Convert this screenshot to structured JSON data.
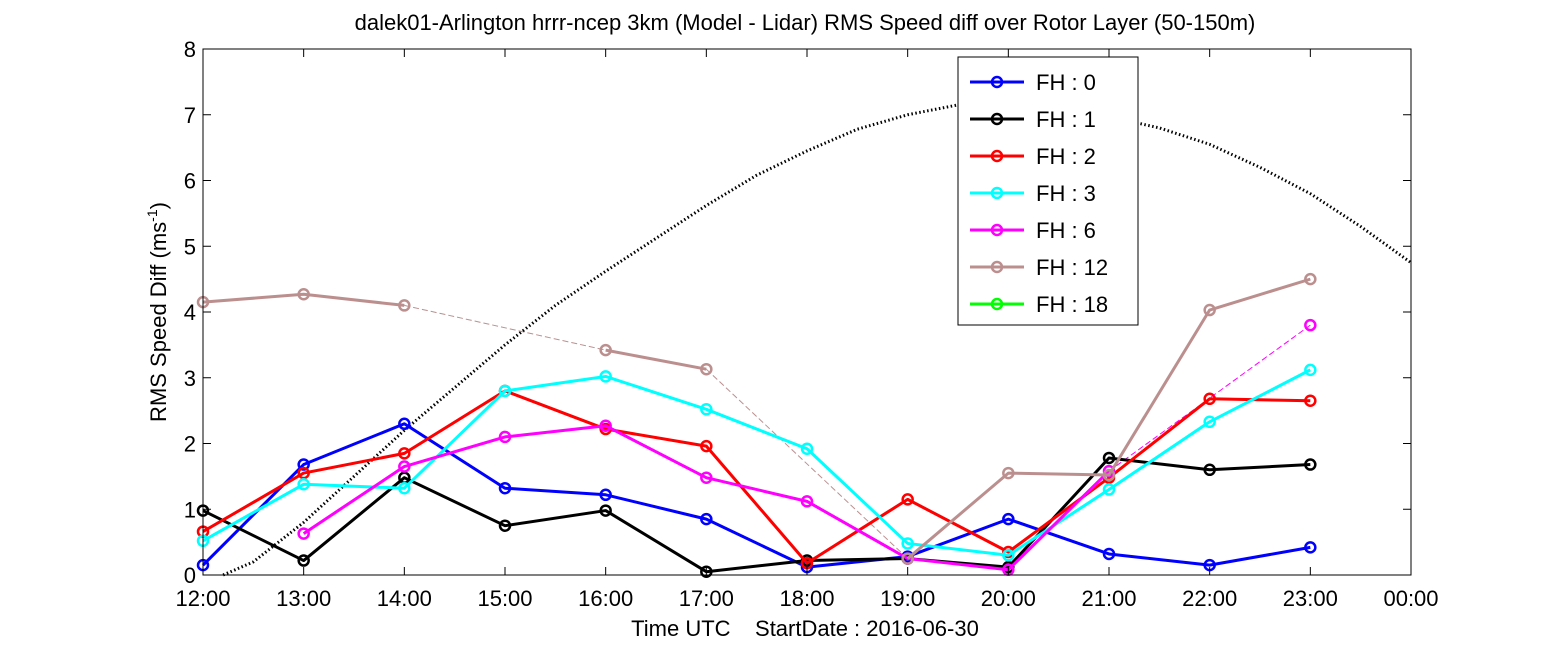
{
  "chart_data": {
    "type": "line",
    "title": "dalek01-Arlington hrrr-ncep 3km (Model - Lidar) RMS Speed diff over Rotor Layer (50-150m)",
    "xlabel": "Time UTC    StartDate : 2016-06-30",
    "ylabel_main": "RMS Speed Diff (ms",
    "ylabel_sup": "-1",
    "ylabel_close": ")",
    "x_tick_labels": [
      "12:00",
      "13:00",
      "14:00",
      "15:00",
      "16:00",
      "17:00",
      "18:00",
      "19:00",
      "20:00",
      "21:00",
      "22:00",
      "23:00",
      "00:00"
    ],
    "y_ticks": [
      0,
      1,
      2,
      3,
      4,
      5,
      6,
      7,
      8
    ],
    "xlim": [
      0,
      12
    ],
    "ylim": [
      0,
      8
    ],
    "grid": false,
    "legend_position": "top-right",
    "series": [
      {
        "name": "FH : 0",
        "color": "#0000ff",
        "x": [
          0,
          1,
          2,
          3,
          4,
          5,
          6,
          7,
          8,
          9,
          10,
          11
        ],
        "values": [
          0.15,
          1.68,
          2.3,
          1.32,
          1.22,
          0.85,
          0.12,
          0.28,
          0.85,
          0.32,
          0.15,
          0.42
        ]
      },
      {
        "name": "FH : 1",
        "color": "#000000",
        "x": [
          0,
          1,
          2,
          3,
          4,
          5,
          6,
          7,
          8,
          9,
          10,
          11
        ],
        "values": [
          0.98,
          0.22,
          1.48,
          0.75,
          0.98,
          0.05,
          0.22,
          0.25,
          0.12,
          1.78,
          1.6,
          1.68
        ]
      },
      {
        "name": "FH : 2",
        "color": "#ff0000",
        "x": [
          0,
          1,
          2,
          3,
          4,
          5,
          6,
          7,
          8,
          9,
          10,
          11
        ],
        "values": [
          0.66,
          1.55,
          1.85,
          2.8,
          2.22,
          1.96,
          0.18,
          1.15,
          0.35,
          1.48,
          2.68,
          2.65
        ]
      },
      {
        "name": "FH : 3",
        "color": "#00ffff",
        "x": [
          0,
          1,
          2,
          3,
          4,
          5,
          6,
          7,
          8,
          9,
          10,
          11
        ],
        "values": [
          0.52,
          1.38,
          1.32,
          2.8,
          3.02,
          2.52,
          1.92,
          0.48,
          0.3,
          1.3,
          2.33,
          3.12
        ]
      },
      {
        "name": "FH : 6",
        "color": "#ff00ff",
        "x": [
          1,
          2,
          3,
          4,
          5,
          6,
          7,
          8,
          9,
          11
        ],
        "values": [
          0.63,
          1.65,
          2.1,
          2.27,
          1.48,
          1.12,
          0.25,
          0.08,
          1.58,
          3.8
        ]
      },
      {
        "name": "FH : 12",
        "color": "#bc8f8f",
        "x": [
          0,
          1,
          2,
          4,
          5,
          7,
          8,
          9,
          10,
          11
        ],
        "values": [
          4.15,
          4.27,
          4.1,
          3.42,
          3.13,
          0.25,
          1.55,
          1.52,
          4.03,
          4.5
        ]
      },
      {
        "name": "FH : 18",
        "color": "#00ff00",
        "x": [],
        "values": []
      }
    ],
    "dotted_curve": {
      "color": "#000000",
      "x": [
        0.2,
        0.5,
        1,
        1.5,
        2,
        2.5,
        3,
        3.5,
        4,
        4.5,
        5,
        5.5,
        6,
        6.5,
        7,
        7.5,
        8,
        8.5,
        9,
        9.5,
        10,
        10.5,
        11,
        11.5,
        12
      ],
      "values": [
        0,
        0.2,
        0.8,
        1.5,
        2.2,
        2.85,
        3.5,
        4.1,
        4.62,
        5.12,
        5.62,
        6.08,
        6.45,
        6.78,
        7.0,
        7.15,
        7.2,
        7.12,
        6.97,
        6.8,
        6.55,
        6.2,
        5.8,
        5.3,
        4.75
      ]
    }
  }
}
